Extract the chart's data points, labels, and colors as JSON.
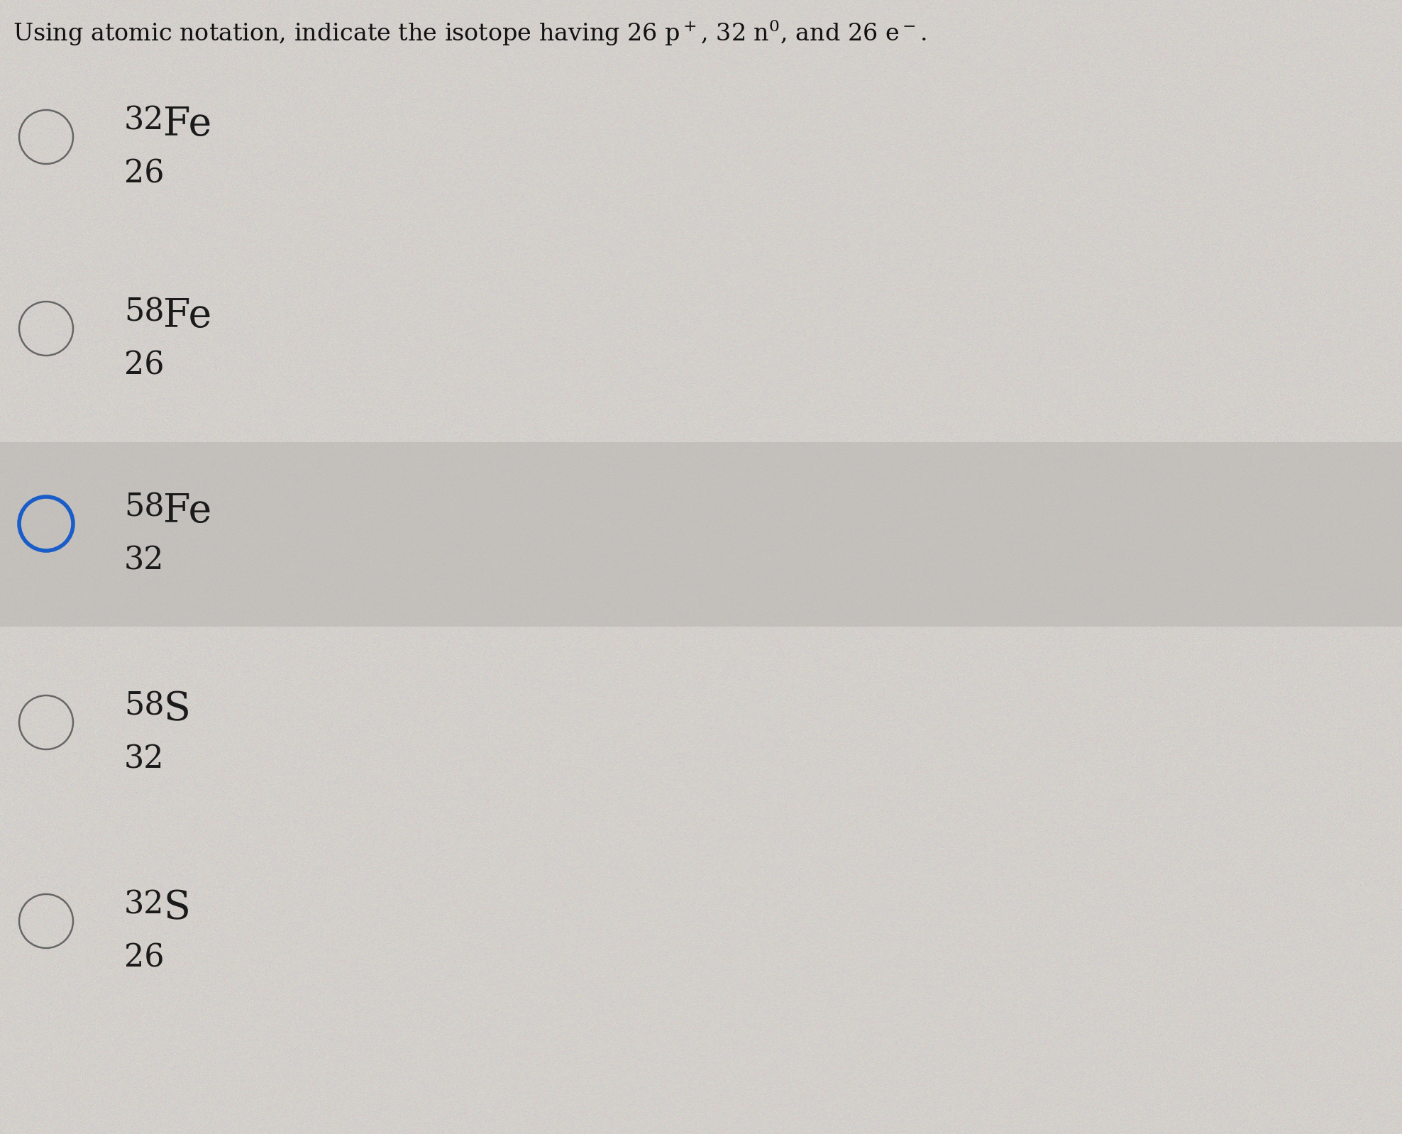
{
  "title": "Using atomic notation, indicate the isotope having 26 p$^+$, 32 n$^0$, and 26 e$^-$.",
  "background_color": "#d4d0cc",
  "option_bg_colors": [
    "#d4d0cc",
    "#d4d0cc",
    "#c4c0bc",
    "#d4d0cc",
    "#d4d0cc"
  ],
  "options": [
    {
      "mass": "32",
      "element": "Fe",
      "atomic": "26",
      "selected": false
    },
    {
      "mass": "58",
      "element": "Fe",
      "atomic": "26",
      "selected": false
    },
    {
      "mass": "58",
      "element": "Fe",
      "atomic": "32",
      "selected": true
    },
    {
      "mass": "58",
      "element": "S",
      "atomic": "32",
      "selected": false
    },
    {
      "mass": "32",
      "element": "S",
      "atomic": "26",
      "selected": false
    }
  ],
  "circle_color_unselected": "#666666",
  "circle_color_selected": "#1a5dc8",
  "circle_bg_selected": "#c4c0bc",
  "title_fontsize": 24,
  "mass_fontsize": 32,
  "element_fontsize": 40,
  "atomic_fontsize": 32,
  "figsize": [
    19.76,
    15.98
  ],
  "dpi": 100
}
